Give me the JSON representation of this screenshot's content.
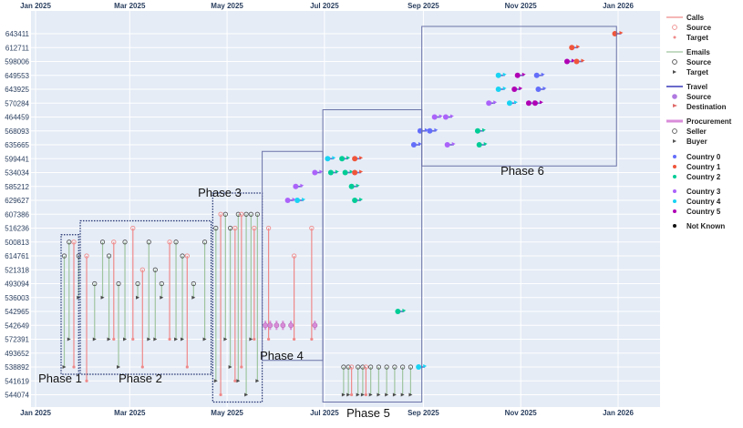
{
  "chart_data": {
    "type": "scatter",
    "x_axis": {
      "type": "date",
      "ticks": [
        "Jan 2025",
        "Mar 2025",
        "May 2025",
        "Jul 2025",
        "Sep 2025",
        "Nov 2025",
        "Jan 2026"
      ],
      "tick_dates": [
        "2025-01-01",
        "2025-03-01",
        "2025-05-01",
        "2025-07-01",
        "2025-09-01",
        "2025-11-01",
        "2026-01-01"
      ],
      "range": [
        "2025-01-01",
        "2026-01-01"
      ]
    },
    "y_axis": {
      "type": "category",
      "categories": [
        "643411",
        "612711",
        "598006",
        "649553",
        "643925",
        "570284",
        "464459",
        "568093",
        "635665",
        "599441",
        "534034",
        "585212",
        "629627",
        "607386",
        "516236",
        "500813",
        "614761",
        "521318",
        "493094",
        "536003",
        "542965",
        "542649",
        "572391",
        "493652",
        "538892",
        "541619",
        "544074"
      ]
    },
    "grid": true,
    "legend": {
      "placement": "right",
      "groups": [
        {
          "title": "Calls",
          "color": "#ef8a8a",
          "items": [
            {
              "label": "Source",
              "marker": "circle-open",
              "color": "#ef8a8a"
            },
            {
              "label": "Target",
              "marker": "star",
              "color": "#ef8a8a"
            }
          ]
        },
        {
          "title": "Emails",
          "color": "#9fc59f",
          "items": [
            {
              "label": "Source",
              "marker": "circle-open",
              "color": "#4d4d4d"
            },
            {
              "label": "Target",
              "marker": "arrow",
              "color": "#4d4d4d"
            }
          ]
        },
        {
          "title": "Travel",
          "color": "#6a6acb",
          "items": [
            {
              "label": "Source",
              "marker": "circle",
              "color": "#b07ae0"
            },
            {
              "label": "Destination",
              "marker": "flag",
              "color": "#e06a6a"
            }
          ]
        },
        {
          "title": "Procurement",
          "color": "#d98cd9",
          "items": [
            {
              "label": "Seller",
              "marker": "circle-open",
              "color": "#555555"
            },
            {
              "label": "Buyer",
              "marker": "arrow",
              "color": "#555555"
            }
          ]
        }
      ],
      "countries": [
        {
          "label": "Country 0",
          "color": "#636efa"
        },
        {
          "label": "Country 1",
          "color": "#ef553b"
        },
        {
          "label": "Country 2",
          "color": "#00cc96"
        },
        {
          "label": "Country 3",
          "color": "#ab63fa"
        },
        {
          "label": "Country 4",
          "color": "#19d3f3"
        },
        {
          "label": "Country 5",
          "color": "#b000b5"
        },
        {
          "label": "Not Known",
          "color": "#111111"
        }
      ]
    },
    "phases": [
      {
        "label": "Phase 1",
        "start": "2025-01-17",
        "end": "2025-01-28",
        "y_top": "500813",
        "y_bottom": "538892",
        "style": "dotted"
      },
      {
        "label": "Phase 2",
        "start": "2025-01-29",
        "end": "2025-04-21",
        "y_top": "516236",
        "y_bottom": "538892",
        "style": "dotted"
      },
      {
        "label": "Phase 3",
        "start": "2025-04-22",
        "end": "2025-05-23",
        "y_top": "629627",
        "y_bottom": "544074",
        "style": "dotted"
      },
      {
        "label": "Phase 4",
        "start": "2025-05-23",
        "end": "2025-06-30",
        "y_top": "599441",
        "y_bottom": "493652",
        "style": "solid"
      },
      {
        "label": "Phase 5",
        "start": "2025-06-30",
        "end": "2025-08-31",
        "y_top": "464459",
        "y_bottom": "544074",
        "style": "solid"
      },
      {
        "label": "Phase 6",
        "start": "2025-08-31",
        "end": "2025-12-31",
        "y_top": "643411",
        "y_bottom": "599441",
        "style": "solid"
      }
    ],
    "travel_points": [
      {
        "date": "2025-06-08",
        "y": "629627",
        "color": "#ab63fa"
      },
      {
        "date": "2025-06-14",
        "y": "629627",
        "color": "#19d3f3"
      },
      {
        "date": "2025-06-13",
        "y": "585212",
        "color": "#ab63fa"
      },
      {
        "date": "2025-06-25",
        "y": "534034",
        "color": "#ab63fa"
      },
      {
        "date": "2025-07-03",
        "y": "599441",
        "color": "#19d3f3"
      },
      {
        "date": "2025-07-12",
        "y": "599441",
        "color": "#00cc96"
      },
      {
        "date": "2025-07-20",
        "y": "599441",
        "color": "#ef553b"
      },
      {
        "date": "2025-07-05",
        "y": "534034",
        "color": "#00cc96"
      },
      {
        "date": "2025-07-14",
        "y": "534034",
        "color": "#00cc96"
      },
      {
        "date": "2025-07-20",
        "y": "534034",
        "color": "#ef553b"
      },
      {
        "date": "2025-07-18",
        "y": "585212",
        "color": "#00cc96"
      },
      {
        "date": "2025-07-20",
        "y": "629627",
        "color": "#00cc96"
      },
      {
        "date": "2025-08-16",
        "y": "542965",
        "color": "#00cc96"
      },
      {
        "date": "2025-08-29",
        "y": "538892",
        "color": "#19d3f3"
      },
      {
        "date": "2025-08-26",
        "y": "635665",
        "color": "#636efa"
      },
      {
        "date": "2025-08-30",
        "y": "568093",
        "color": "#636efa"
      },
      {
        "date": "2025-09-05",
        "y": "568093",
        "color": "#636efa"
      },
      {
        "date": "2025-09-08",
        "y": "464459",
        "color": "#ab63fa"
      },
      {
        "date": "2025-09-15",
        "y": "464459",
        "color": "#ab63fa"
      },
      {
        "date": "2025-09-16",
        "y": "635665",
        "color": "#ab63fa"
      },
      {
        "date": "2025-10-05",
        "y": "568093",
        "color": "#00cc96"
      },
      {
        "date": "2025-10-06",
        "y": "635665",
        "color": "#00cc96"
      },
      {
        "date": "2025-10-12",
        "y": "570284",
        "color": "#ab63fa"
      },
      {
        "date": "2025-10-18",
        "y": "649553",
        "color": "#19d3f3"
      },
      {
        "date": "2025-10-18",
        "y": "643925",
        "color": "#19d3f3"
      },
      {
        "date": "2025-10-28",
        "y": "643925",
        "color": "#b000b5"
      },
      {
        "date": "2025-10-30",
        "y": "649553",
        "color": "#b000b5"
      },
      {
        "date": "2025-10-25",
        "y": "570284",
        "color": "#19d3f3"
      },
      {
        "date": "2025-11-06",
        "y": "570284",
        "color": "#b000b5"
      },
      {
        "date": "2025-11-10",
        "y": "570284",
        "color": "#b000b5"
      },
      {
        "date": "2025-11-11",
        "y": "649553",
        "color": "#636efa"
      },
      {
        "date": "2025-11-12",
        "y": "643925",
        "color": "#636efa"
      },
      {
        "date": "2025-11-30",
        "y": "598006",
        "color": "#b000b5"
      },
      {
        "date": "2025-12-03",
        "y": "612711",
        "color": "#ef553b"
      },
      {
        "date": "2025-12-06",
        "y": "598006",
        "color": "#ef553b"
      },
      {
        "date": "2025-12-30",
        "y": "643411",
        "color": "#ef553b"
      }
    ],
    "procurement_points": [
      {
        "date": "2025-05-25",
        "y": "542649"
      },
      {
        "date": "2025-05-28",
        "y": "542649"
      },
      {
        "date": "2025-06-01",
        "y": "542649"
      },
      {
        "date": "2025-06-05",
        "y": "542649"
      },
      {
        "date": "2025-06-10",
        "y": "542649"
      },
      {
        "date": "2025-06-25",
        "y": "542649"
      }
    ],
    "communication_links": {
      "calls": [
        {
          "date": "2025-01-25",
          "from": "500813",
          "to": "538892"
        },
        {
          "date": "2025-02-02",
          "from": "614761",
          "to": "541619"
        },
        {
          "date": "2025-02-19",
          "from": "500813",
          "to": "572391"
        },
        {
          "date": "2025-03-03",
          "from": "516236",
          "to": "572391"
        },
        {
          "date": "2025-03-09",
          "from": "521318",
          "to": "538892"
        },
        {
          "date": "2025-03-26",
          "from": "500813",
          "to": "572391"
        },
        {
          "date": "2025-04-06",
          "from": "614761",
          "to": "538892"
        },
        {
          "date": "2025-04-27",
          "from": "607386",
          "to": "544074"
        },
        {
          "date": "2025-05-06",
          "from": "516236",
          "to": "541619"
        },
        {
          "date": "2025-05-10",
          "from": "607386",
          "to": "538892"
        },
        {
          "date": "2025-05-18",
          "from": "516236",
          "to": "572391"
        },
        {
          "date": "2025-05-27",
          "from": "516236",
          "to": "572391"
        },
        {
          "date": "2025-06-12",
          "from": "614761",
          "to": "572391"
        },
        {
          "date": "2025-06-23",
          "from": "516236",
          "to": "572391"
        },
        {
          "date": "2025-07-18",
          "from": "538892",
          "to": "544074"
        },
        {
          "date": "2025-07-27",
          "from": "538892",
          "to": "544074"
        }
      ],
      "emails": [
        {
          "date": "2025-01-19",
          "from": "614761",
          "to": "538892"
        },
        {
          "date": "2025-01-22",
          "from": "500813",
          "to": "572391"
        },
        {
          "date": "2025-01-28",
          "from": "614761",
          "to": "536003"
        },
        {
          "date": "2025-02-07",
          "from": "493094",
          "to": "572391"
        },
        {
          "date": "2025-02-12",
          "from": "500813",
          "to": "536003"
        },
        {
          "date": "2025-02-16",
          "from": "614761",
          "to": "572391"
        },
        {
          "date": "2025-02-22",
          "from": "493094",
          "to": "538892"
        },
        {
          "date": "2025-02-26",
          "from": "500813",
          "to": "572391"
        },
        {
          "date": "2025-03-06",
          "from": "493094",
          "to": "536003"
        },
        {
          "date": "2025-03-13",
          "from": "500813",
          "to": "572391"
        },
        {
          "date": "2025-03-17",
          "from": "521318",
          "to": "572391"
        },
        {
          "date": "2025-03-21",
          "from": "493094",
          "to": "536003"
        },
        {
          "date": "2025-03-30",
          "from": "500813",
          "to": "572391"
        },
        {
          "date": "2025-04-03",
          "from": "614761",
          "to": "572391"
        },
        {
          "date": "2025-04-10",
          "from": "493094",
          "to": "536003"
        },
        {
          "date": "2025-04-17",
          "from": "500813",
          "to": "572391"
        },
        {
          "date": "2025-04-24",
          "from": "516236",
          "to": "541619"
        },
        {
          "date": "2025-04-30",
          "from": "607386",
          "to": "572391"
        },
        {
          "date": "2025-05-03",
          "from": "516236",
          "to": "538892"
        },
        {
          "date": "2025-05-08",
          "from": "607386",
          "to": "541619"
        },
        {
          "date": "2025-05-13",
          "from": "607386",
          "to": "544074"
        },
        {
          "date": "2025-05-16",
          "from": "607386",
          "to": "572391"
        },
        {
          "date": "2025-05-20",
          "from": "607386",
          "to": "541619"
        },
        {
          "date": "2025-07-13",
          "from": "538892",
          "to": "544074"
        },
        {
          "date": "2025-07-16",
          "from": "538892",
          "to": "544074"
        },
        {
          "date": "2025-07-22",
          "from": "538892",
          "to": "544074"
        },
        {
          "date": "2025-07-25",
          "from": "538892",
          "to": "544074"
        },
        {
          "date": "2025-07-30",
          "from": "538892",
          "to": "544074"
        },
        {
          "date": "2025-08-04",
          "from": "538892",
          "to": "544074"
        },
        {
          "date": "2025-08-09",
          "from": "538892",
          "to": "544074"
        },
        {
          "date": "2025-08-14",
          "from": "538892",
          "to": "544074"
        },
        {
          "date": "2025-08-19",
          "from": "538892",
          "to": "544074"
        },
        {
          "date": "2025-08-24",
          "from": "538892",
          "to": "544074"
        }
      ]
    }
  }
}
